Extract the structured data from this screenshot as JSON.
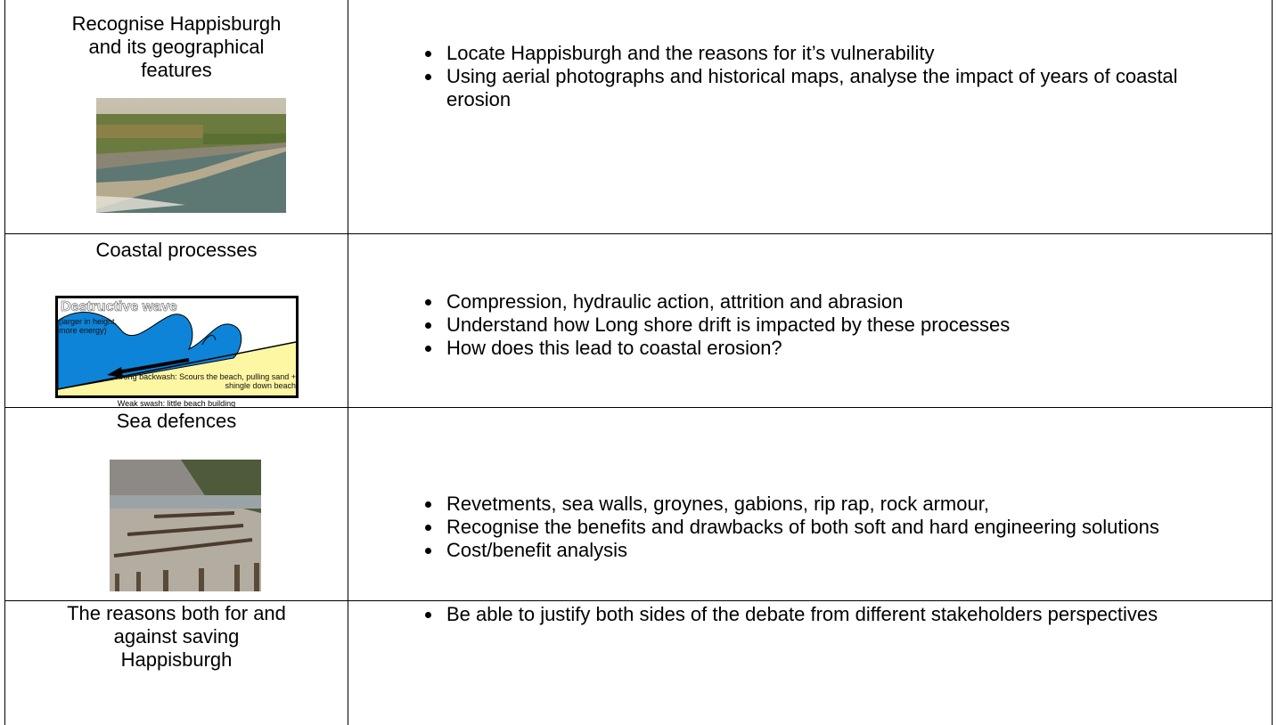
{
  "table": {
    "rows": [
      {
        "topic": "Recognise Happisburgh and its geographical features",
        "points": [
          "Locate Happisburgh and the reasons for it’s vulnerability",
          "Using aerial photographs and historical maps, analyse the impact of years of coastal erosion"
        ]
      },
      {
        "topic": "Coastal processes",
        "figure": {
          "title": "Destructive wave",
          "labels": [
            "(larger in height, more energy)",
            "Strong backwash: Scours the beach, pulling sand + shingle down beach"
          ],
          "caption": "Weak swash: little beach building"
        },
        "points": [
          "Compression, hydraulic action, attrition and abrasion",
          "Understand how Long shore drift is impacted by these processes",
          "How does this lead to coastal erosion?"
        ]
      },
      {
        "topic": "Sea defences",
        "points": [
          "Revetments, sea walls, groynes, gabions, rip rap, rock armour,",
          "Recognise the benefits and drawbacks of both soft and hard engineering solutions",
          "Cost/benefit analysis"
        ]
      },
      {
        "topic": "The reasons both for and against saving Happisburgh",
        "points": [
          "Be able to justify both sides of the debate from different stakeholders perspectives"
        ]
      }
    ]
  }
}
